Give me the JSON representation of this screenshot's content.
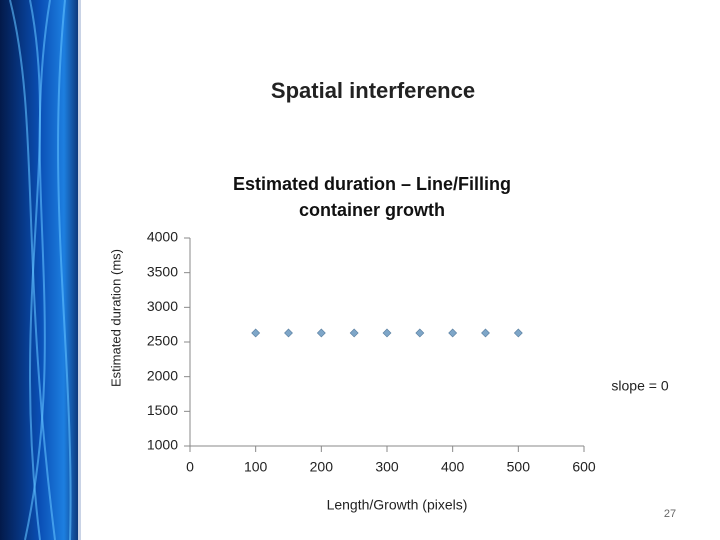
{
  "slide_title": "Spatial interference",
  "slide_number": 27,
  "chart_data": {
    "type": "scatter",
    "title": "Estimated duration – Line/Filling container growth",
    "x_label": "Length/Growth (pixels)",
    "y_label": "Estimated duration (ms)",
    "annotation": "slope = 0",
    "x": [
      100,
      150,
      200,
      250,
      300,
      350,
      400,
      450,
      500
    ],
    "values": [
      2630,
      2630,
      2630,
      2630,
      2630,
      2630,
      2630,
      2630,
      2630
    ],
    "color": "#7ea6c8",
    "xlim": [
      0,
      600
    ],
    "xticks": [
      0,
      100,
      200,
      300,
      400,
      500,
      600
    ],
    "ylim": [
      1000,
      4000
    ],
    "yticks": [
      1000,
      1500,
      2000,
      2500,
      3000,
      3500,
      4000
    ],
    "grid": false
  }
}
